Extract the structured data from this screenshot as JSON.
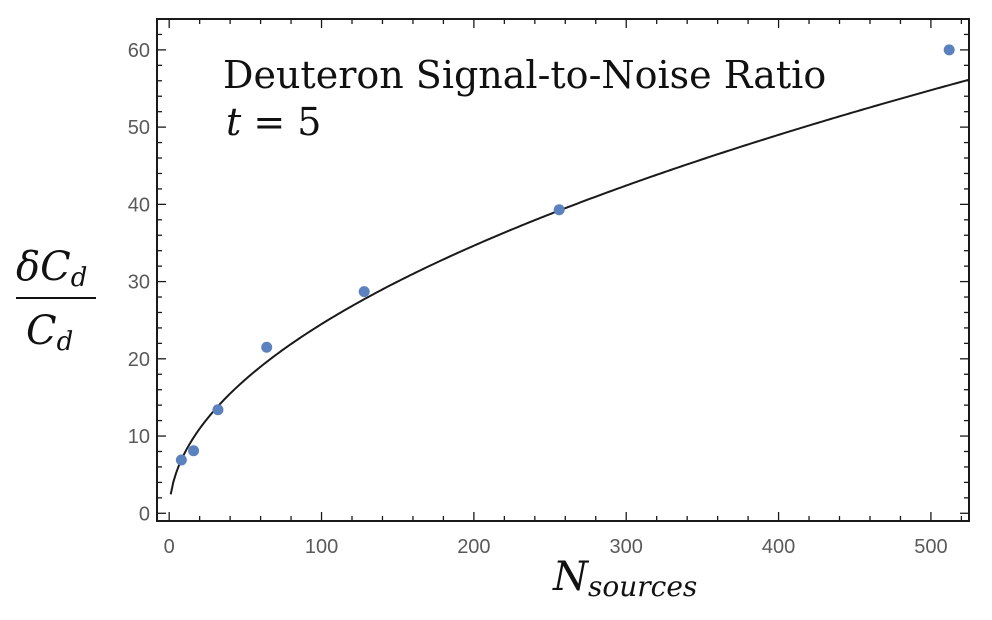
{
  "chart_data": {
    "type": "scatter",
    "title": "Deuteron Signal-to-Noise Ratio",
    "subtitle": "t = 5",
    "subtitle_parts": {
      "var": "t",
      "rest": " = 5"
    },
    "xlabel": "N_sources",
    "xlabel_parts": {
      "base": "N",
      "sub": "sources"
    },
    "ylabel": "δC_d / C_d",
    "ylabel_parts": {
      "numerator_base": "δC",
      "numerator_sub": "d",
      "denominator_base": "C",
      "denominator_sub": "d"
    },
    "xlim": [
      -8,
      525
    ],
    "ylim": [
      -1,
      64
    ],
    "x_ticks": [
      0,
      100,
      200,
      300,
      400,
      500
    ],
    "y_ticks": [
      0,
      10,
      20,
      30,
      40,
      50,
      60
    ],
    "x_ticks_labels": [
      "0",
      "100",
      "200",
      "300",
      "400",
      "500"
    ],
    "y_ticks_labels": [
      "0",
      "10",
      "20",
      "30",
      "40",
      "50",
      "60"
    ],
    "grid": false,
    "series": [
      {
        "type": "scatter",
        "color": "#5b82bf",
        "points": [
          {
            "x": 8,
            "y": 6.9
          },
          {
            "x": 16,
            "y": 8.1
          },
          {
            "x": 32,
            "y": 13.4
          },
          {
            "x": 64,
            "y": 21.5
          },
          {
            "x": 128,
            "y": 28.7
          },
          {
            "x": 256,
            "y": 39.3
          },
          {
            "x": 512,
            "y": 60.0
          }
        ]
      },
      {
        "type": "line",
        "color": "#1a1a1a",
        "curve": {
          "form": "a*sqrt(x)",
          "a": 2.45,
          "x_start": 1,
          "x_end": 525
        }
      }
    ]
  }
}
